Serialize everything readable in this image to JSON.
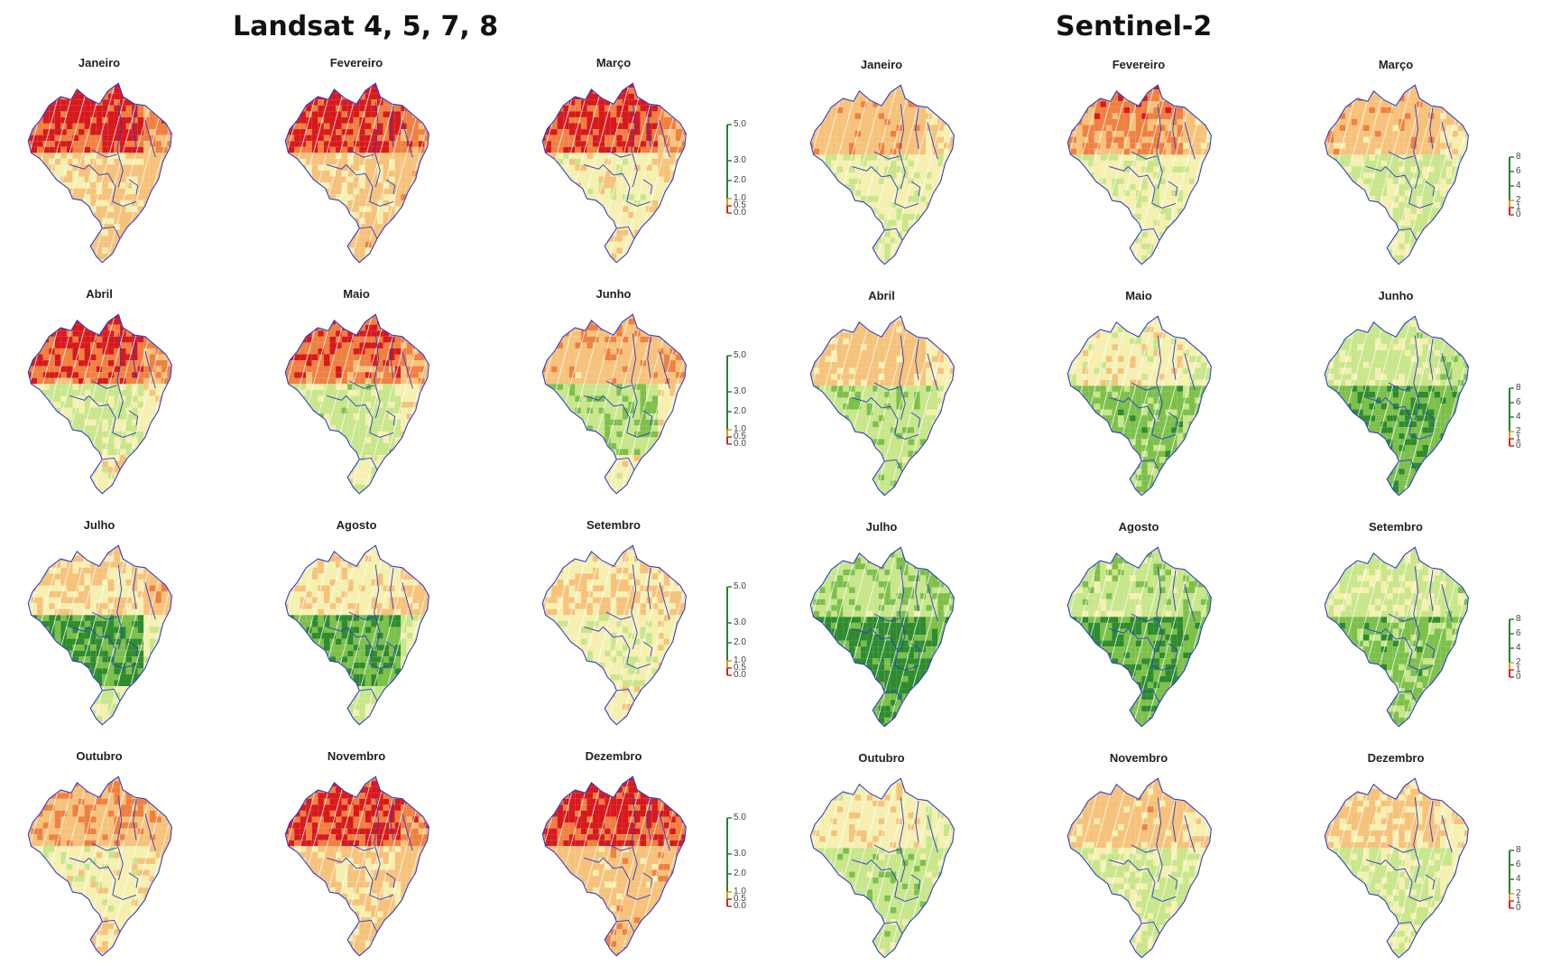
{
  "titles": {
    "landsat": "Landsat 4, 5, 7, 8",
    "sentinel": "Sentinel-2"
  },
  "landsat_panels": [
    {
      "month": "Janeiro",
      "index": 0
    },
    {
      "month": "Fevereiro",
      "index": 1
    },
    {
      "month": "Março",
      "index": 2
    },
    {
      "month": "Abril",
      "index": 3
    },
    {
      "month": "Maio",
      "index": 4
    },
    {
      "month": "Junho",
      "index": 5
    },
    {
      "month": "Julho",
      "index": 6
    },
    {
      "month": "Agosto",
      "index": 7
    },
    {
      "month": "Setembro",
      "index": 8
    },
    {
      "month": "Outubro",
      "index": 9
    },
    {
      "month": "Novembro",
      "index": 10
    },
    {
      "month": "Dezembro",
      "index": 11
    }
  ],
  "sentinel_panels": [
    {
      "month": "Janeiro",
      "index": 0
    },
    {
      "month": "Fevereiro",
      "index": 1
    },
    {
      "month": "Março",
      "index": 2
    },
    {
      "month": "Abril",
      "index": 3
    },
    {
      "month": "Maio",
      "index": 4
    },
    {
      "month": "Junho",
      "index": 5
    },
    {
      "month": "Julho",
      "index": 6
    },
    {
      "month": "Agosto",
      "index": 7
    },
    {
      "month": "Setembro",
      "index": 8
    },
    {
      "month": "Outubro",
      "index": 9
    },
    {
      "month": "Novembro",
      "index": 10
    },
    {
      "month": "Dezembro",
      "index": 11
    }
  ],
  "landsat_legend": {
    "ticks": [
      "5.0",
      "3.0",
      "2.0",
      "1.0",
      "0.5",
      "0.0"
    ],
    "colors": {
      "low": "#c62828",
      "mid": "#d4a017",
      "high": "#2e7d32"
    }
  },
  "sentinel_legend": {
    "ticks": [
      "8",
      "6",
      "4",
      "2",
      "1",
      "0"
    ],
    "colors": {
      "low": "#c62828",
      "mid": "#d4a017",
      "high": "#2e7d32"
    }
  },
  "colors": {
    "very_low": "#d7191c",
    "low": "#f08040",
    "mid_low": "#f6c27a",
    "mid": "#f5f0b0",
    "mid_high": "#c8e68a",
    "high": "#7cc04a",
    "very_high": "#2e8b2e",
    "boundary": "#2b3bd6"
  }
}
